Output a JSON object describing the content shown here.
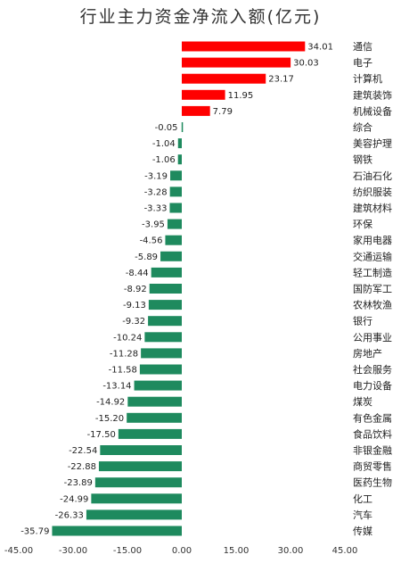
{
  "chart_data": {
    "type": "bar",
    "orientation": "horizontal",
    "title": "行业主力资金净流入额(亿元)",
    "xlim": [
      -45,
      45
    ],
    "xticks": [
      "-45.00",
      "-30.00",
      "-15.00",
      "0.00",
      "15.00",
      "30.00",
      "45.00"
    ],
    "xtick_values": [
      -45,
      -30,
      -15,
      0,
      15,
      30,
      45
    ],
    "grid": false,
    "colors": {
      "positive": "#ff0000",
      "negative": "#1e8a5e"
    },
    "categories": [
      "通信",
      "电子",
      "计算机",
      "建筑装饰",
      "机械设备",
      "综合",
      "美容护理",
      "钢铁",
      "石油石化",
      "纺织服装",
      "建筑材料",
      "环保",
      "家用电器",
      "交通运输",
      "轻工制造",
      "国防军工",
      "农林牧渔",
      "银行",
      "公用事业",
      "房地产",
      "社会服务",
      "电力设备",
      "煤炭",
      "有色金属",
      "食品饮料",
      "非银金融",
      "商贸零售",
      "医药生物",
      "化工",
      "汽车",
      "传媒"
    ],
    "values": [
      34.01,
      30.03,
      23.17,
      11.95,
      7.79,
      -0.05,
      -1.04,
      -1.06,
      -3.19,
      -3.28,
      -3.33,
      -3.95,
      -4.56,
      -5.89,
      -8.44,
      -8.92,
      -9.13,
      -9.32,
      -10.24,
      -11.28,
      -11.58,
      -13.14,
      -14.92,
      -15.2,
      -17.5,
      -22.54,
      -22.88,
      -23.89,
      -24.99,
      -26.33,
      -35.79
    ],
    "labels": [
      "34.01",
      "30.03",
      "23.17",
      "11.95",
      "7.79",
      "-0.05",
      "-1.04",
      "-1.06",
      "-3.19",
      "-3.28",
      "-3.33",
      "-3.95",
      "-4.56",
      "-5.89",
      "-8.44",
      "-8.92",
      "-9.13",
      "-9.32",
      "-10.24",
      "-11.28",
      "-11.58",
      "-13.14",
      "-14.92",
      "-15.20",
      "-17.50",
      "-22.54",
      "-22.88",
      "-23.89",
      "-24.99",
      "-26.33",
      "-35.79"
    ]
  }
}
